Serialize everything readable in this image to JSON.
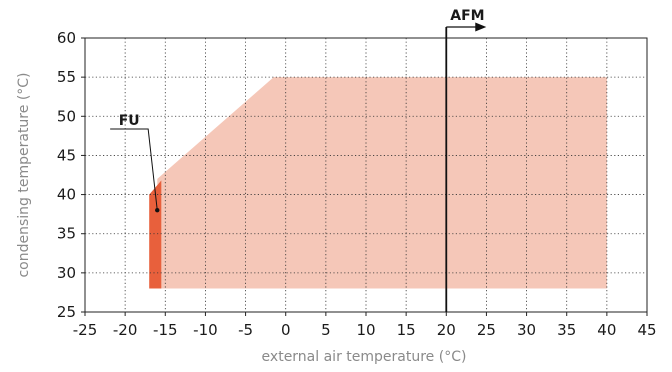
{
  "chart_data": {
    "type": "area",
    "xlabel": "external air temperature (°C)",
    "ylabel": "condensing temperature (°C)",
    "xlim": [
      -25,
      45
    ],
    "ylim": [
      25,
      60
    ],
    "xticks": [
      -25,
      -20,
      -15,
      -10,
      -5,
      0,
      5,
      10,
      15,
      20,
      25,
      30,
      35,
      40,
      45
    ],
    "yticks": [
      25,
      30,
      35,
      40,
      45,
      50,
      55,
      60
    ],
    "grid": true,
    "regions": [
      {
        "label": "",
        "color": "#f5c7b8",
        "polygon": [
          [
            -16,
            28
          ],
          [
            40,
            28
          ],
          [
            40,
            55
          ],
          [
            -1.5,
            55
          ],
          [
            -16,
            42
          ]
        ]
      },
      {
        "label": "FU",
        "color": "#e8603c",
        "polygon": [
          [
            -17,
            28
          ],
          [
            -15.5,
            28
          ],
          [
            -15.5,
            41.8
          ],
          [
            -17,
            40
          ]
        ]
      }
    ],
    "annotations": [
      {
        "text": "FU",
        "label_at": [
          -19.5,
          48.5
        ],
        "points_to": [
          -16,
          38
        ]
      },
      {
        "text": "AFM",
        "line_x": 20,
        "arrow": "right"
      }
    ]
  }
}
